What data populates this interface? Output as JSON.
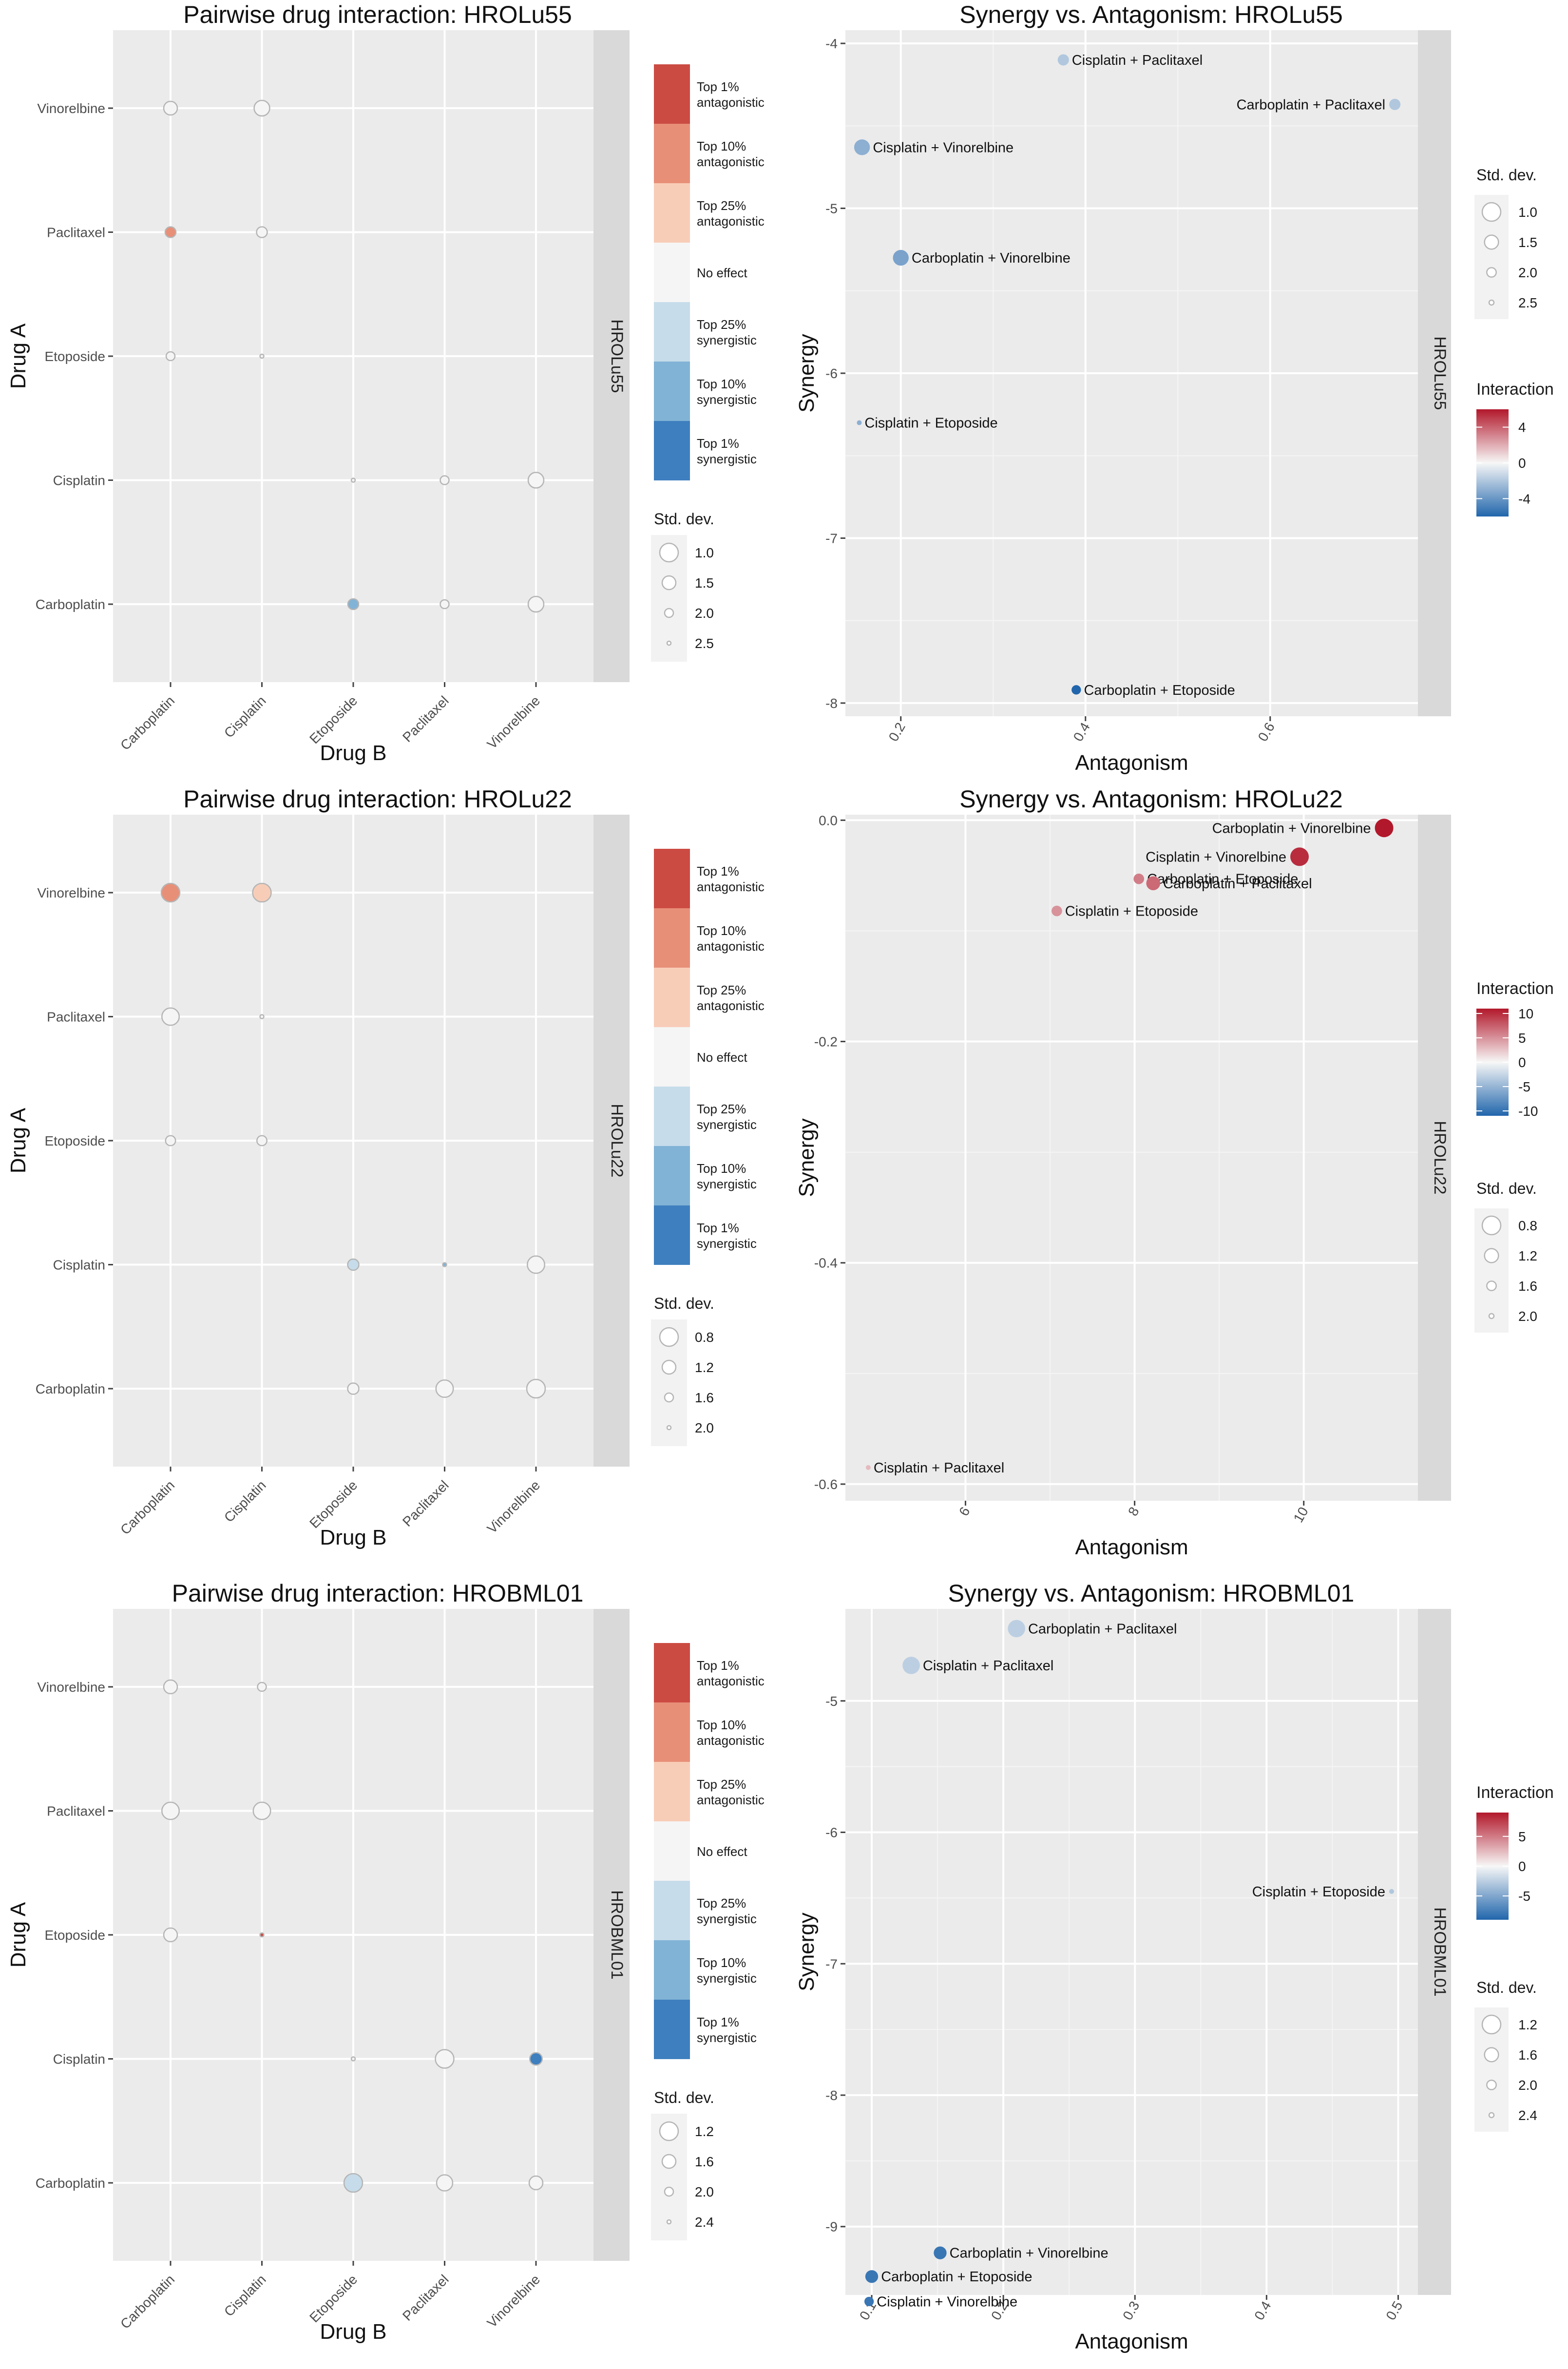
{
  "legend": {
    "interaction_levels": [
      "Top 1%\nantagonistic",
      "Top 10%\nantagonistic",
      "Top 25%\nantagonistic",
      "No effect",
      "Top 25%\nsynergistic",
      "Top 10%\nsynergistic",
      "Top 1%\nsynergistic"
    ],
    "level_colors": [
      "#cb4b43",
      "#e88f78",
      "#f8cdb8",
      "#f5f5f5",
      "#c6dcea",
      "#81b3d6",
      "#3e7fbf"
    ],
    "stddev_title": "Std. dev.",
    "interaction_title": "Interaction"
  },
  "chart_data": [
    {
      "type": "scatter",
      "subtype": "pairwise-matrix",
      "title": "Pairwise drug interaction:  HROLu55",
      "xlabel": "Drug B",
      "ylabel": "Drug A",
      "strip": "HROLu55",
      "x_categories": [
        "Carboplatin",
        "Cisplatin",
        "Etoposide",
        "Paclitaxel",
        "Vinorelbine"
      ],
      "y_categories": [
        "Carboplatin",
        "Cisplatin",
        "Etoposide",
        "Paclitaxel",
        "Vinorelbine"
      ],
      "sd_legend": [
        "1.0",
        "1.5",
        "2.0",
        "2.5"
      ],
      "sd_legend_values": [
        1.0,
        1.5,
        2.0,
        2.5
      ],
      "points": [
        {
          "drug_b": "Carboplatin",
          "drug_a": "Vinorelbine",
          "level": "No effect",
          "sd": 1.5
        },
        {
          "drug_b": "Cisplatin",
          "drug_a": "Vinorelbine",
          "level": "No effect",
          "sd": 1.3
        },
        {
          "drug_b": "Carboplatin",
          "drug_a": "Paclitaxel",
          "level": "Top 10%\nantagonistic",
          "sd": 1.8
        },
        {
          "drug_b": "Cisplatin",
          "drug_a": "Paclitaxel",
          "level": "No effect",
          "sd": 1.8
        },
        {
          "drug_b": "Carboplatin",
          "drug_a": "Etoposide",
          "level": "No effect",
          "sd": 2.0
        },
        {
          "drug_b": "Cisplatin",
          "drug_a": "Etoposide",
          "level": "No effect",
          "sd": 2.5
        },
        {
          "drug_b": "Etoposide",
          "drug_a": "Cisplatin",
          "level": "No effect",
          "sd": 2.5
        },
        {
          "drug_b": "Paclitaxel",
          "drug_a": "Cisplatin",
          "level": "No effect",
          "sd": 2.0
        },
        {
          "drug_b": "Vinorelbine",
          "drug_a": "Cisplatin",
          "level": "No effect",
          "sd": 1.3
        },
        {
          "drug_b": "Etoposide",
          "drug_a": "Carboplatin",
          "level": "Top 10%\nsynergistic",
          "sd": 1.8
        },
        {
          "drug_b": "Paclitaxel",
          "drug_a": "Carboplatin",
          "level": "No effect",
          "sd": 2.0
        },
        {
          "drug_b": "Vinorelbine",
          "drug_a": "Carboplatin",
          "level": "No effect",
          "sd": 1.3
        }
      ]
    },
    {
      "type": "scatter",
      "title": "Synergy vs. Antagonism:  HROLu55",
      "xlabel": "Antagonism",
      "ylabel": "Synergy",
      "strip": "HROLu55",
      "xlim": [
        0.14,
        0.76
      ],
      "ylim": [
        -8.08,
        -3.92
      ],
      "x_ticks": [
        0.2,
        0.4,
        0.6
      ],
      "x_tick_labels": [
        "0.2",
        "0.4",
        "0.6"
      ],
      "y_ticks": [
        -8,
        -7,
        -6,
        -5,
        -4
      ],
      "y_tick_labels": [
        "-8",
        "-7",
        "-6",
        "-5",
        "-4"
      ],
      "sd_legend": [
        "1.0",
        "1.5",
        "2.0",
        "2.5"
      ],
      "sd_legend_values": [
        1.0,
        1.5,
        2.0,
        2.5
      ],
      "colorbar": {
        "min": -6.0,
        "max": 6.0,
        "ticks": [
          4,
          0,
          -4
        ],
        "tick_labels": [
          "4",
          "0",
          "-4"
        ]
      },
      "points": [
        {
          "label": "Cisplatin + Paclitaxel",
          "x": 0.376,
          "y": -4.1,
          "interaction": -2.0,
          "sd": 1.8
        },
        {
          "label": "Carboplatin + Paclitaxel",
          "x": 0.735,
          "y": -4.37,
          "interaction": -2.0,
          "sd": 1.8
        },
        {
          "label": "Cisplatin + Vinorelbine",
          "x": 0.158,
          "y": -4.63,
          "interaction": -3.0,
          "sd": 1.3
        },
        {
          "label": "Carboplatin + Vinorelbine",
          "x": 0.2,
          "y": -5.3,
          "interaction": -3.5,
          "sd": 1.3
        },
        {
          "label": "Cisplatin + Etoposide",
          "x": 0.155,
          "y": -6.3,
          "interaction": -3.0,
          "sd": 2.5
        },
        {
          "label": "Carboplatin + Etoposide",
          "x": 0.39,
          "y": -7.92,
          "interaction": -6.0,
          "sd": 2.0
        }
      ]
    },
    {
      "type": "scatter",
      "subtype": "pairwise-matrix",
      "title": "Pairwise drug interaction:  HROLu22",
      "xlabel": "Drug B",
      "ylabel": "Drug A",
      "strip": "HROLu22",
      "x_categories": [
        "Carboplatin",
        "Cisplatin",
        "Etoposide",
        "Paclitaxel",
        "Vinorelbine"
      ],
      "y_categories": [
        "Carboplatin",
        "Cisplatin",
        "Etoposide",
        "Paclitaxel",
        "Vinorelbine"
      ],
      "sd_legend": [
        "0.8",
        "1.2",
        "1.6",
        "2.0"
      ],
      "sd_legend_values": [
        0.8,
        1.2,
        1.6,
        2.0
      ],
      "points": [
        {
          "drug_b": "Carboplatin",
          "drug_a": "Vinorelbine",
          "level": "Top 10%\nantagonistic",
          "sd": 0.8
        },
        {
          "drug_b": "Cisplatin",
          "drug_a": "Vinorelbine",
          "level": "Top 25%\nantagonistic",
          "sd": 0.8
        },
        {
          "drug_b": "Carboplatin",
          "drug_a": "Paclitaxel",
          "level": "No effect",
          "sd": 0.9
        },
        {
          "drug_b": "Cisplatin",
          "drug_a": "Paclitaxel",
          "level": "No effect",
          "sd": 2.0
        },
        {
          "drug_b": "Carboplatin",
          "drug_a": "Etoposide",
          "level": "No effect",
          "sd": 1.5
        },
        {
          "drug_b": "Cisplatin",
          "drug_a": "Etoposide",
          "level": "No effect",
          "sd": 1.5
        },
        {
          "drug_b": "Etoposide",
          "drug_a": "Cisplatin",
          "level": "Top 25%\nsynergistic",
          "sd": 1.4
        },
        {
          "drug_b": "Paclitaxel",
          "drug_a": "Cisplatin",
          "level": "Top 10%\nsynergistic",
          "sd": 2.0
        },
        {
          "drug_b": "Vinorelbine",
          "drug_a": "Cisplatin",
          "level": "No effect",
          "sd": 0.9
        },
        {
          "drug_b": "Etoposide",
          "drug_a": "Carboplatin",
          "level": "No effect",
          "sd": 1.4
        },
        {
          "drug_b": "Paclitaxel",
          "drug_a": "Carboplatin",
          "level": "No effect",
          "sd": 0.9
        },
        {
          "drug_b": "Vinorelbine",
          "drug_a": "Carboplatin",
          "level": "No effect",
          "sd": 0.8
        }
      ]
    },
    {
      "type": "scatter",
      "title": "Synergy vs. Antagonism:  HROLu22",
      "xlabel": "Antagonism",
      "ylabel": "Synergy",
      "strip": "HROLu22",
      "xlim": [
        4.58,
        11.35
      ],
      "ylim": [
        -0.615,
        0.005
      ],
      "x_ticks": [
        6,
        8,
        10
      ],
      "x_tick_labels": [
        "6",
        "8",
        "10"
      ],
      "y_ticks": [
        -0.6,
        -0.4,
        -0.2,
        0.0
      ],
      "y_tick_labels": [
        "-0.6",
        "-0.4",
        "-0.2",
        "0.0"
      ],
      "sd_legend": [
        "0.8",
        "1.2",
        "1.6",
        "2.0"
      ],
      "sd_legend_values": [
        0.8,
        1.2,
        1.6,
        2.0
      ],
      "colorbar": {
        "min": -11.0,
        "max": 11.0,
        "ticks": [
          10,
          5,
          0,
          -5,
          -10
        ],
        "tick_labels": [
          "10",
          "5",
          "0",
          "-5",
          "-10"
        ]
      },
      "points": [
        {
          "label": "Carboplatin + Vinorelbine",
          "x": 10.95,
          "y": -0.007,
          "interaction": 11.0,
          "sd": 0.8
        },
        {
          "label": "Cisplatin + Vinorelbine",
          "x": 9.95,
          "y": -0.033,
          "interaction": 10.0,
          "sd": 0.8
        },
        {
          "label": "Carboplatin + Etoposide",
          "x": 8.05,
          "y": -0.053,
          "interaction": 6.0,
          "sd": 1.5
        },
        {
          "label": "Carboplatin + Paclitaxel",
          "x": 8.22,
          "y": -0.057,
          "interaction": 7.0,
          "sd": 1.2
        },
        {
          "label": "Cisplatin + Etoposide",
          "x": 7.08,
          "y": -0.082,
          "interaction": 5.0,
          "sd": 1.5
        },
        {
          "label": "Cisplatin + Paclitaxel",
          "x": 4.85,
          "y": -0.585,
          "interaction": 3.0,
          "sd": 2.0
        }
      ]
    },
    {
      "type": "scatter",
      "subtype": "pairwise-matrix",
      "title": "Pairwise drug interaction:  HROBML01",
      "xlabel": "Drug B",
      "ylabel": "Drug A",
      "strip": "HROBML01",
      "x_categories": [
        "Carboplatin",
        "Cisplatin",
        "Etoposide",
        "Paclitaxel",
        "Vinorelbine"
      ],
      "y_categories": [
        "Carboplatin",
        "Cisplatin",
        "Etoposide",
        "Paclitaxel",
        "Vinorelbine"
      ],
      "sd_legend": [
        "1.2",
        "1.6",
        "2.0",
        "2.4"
      ],
      "sd_legend_values": [
        1.2,
        1.6,
        2.0,
        2.4
      ],
      "points": [
        {
          "drug_b": "Carboplatin",
          "drug_a": "Vinorelbine",
          "level": "No effect",
          "sd": 1.6
        },
        {
          "drug_b": "Cisplatin",
          "drug_a": "Vinorelbine",
          "level": "No effect",
          "sd": 2.0
        },
        {
          "drug_b": "Carboplatin",
          "drug_a": "Paclitaxel",
          "level": "No effect",
          "sd": 1.3
        },
        {
          "drug_b": "Cisplatin",
          "drug_a": "Paclitaxel",
          "level": "No effect",
          "sd": 1.3
        },
        {
          "drug_b": "Carboplatin",
          "drug_a": "Etoposide",
          "level": "No effect",
          "sd": 1.6
        },
        {
          "drug_b": "Cisplatin",
          "drug_a": "Etoposide",
          "level": "Top 1%\nantagonistic",
          "sd": 2.4
        },
        {
          "drug_b": "Etoposide",
          "drug_a": "Cisplatin",
          "level": "No effect",
          "sd": 2.4
        },
        {
          "drug_b": "Paclitaxel",
          "drug_a": "Cisplatin",
          "level": "No effect",
          "sd": 1.2
        },
        {
          "drug_b": "Vinorelbine",
          "drug_a": "Cisplatin",
          "level": "Top 1%\nsynergistic",
          "sd": 1.7
        },
        {
          "drug_b": "Etoposide",
          "drug_a": "Carboplatin",
          "level": "Top 25%\nsynergistic",
          "sd": 1.2
        },
        {
          "drug_b": "Paclitaxel",
          "drug_a": "Carboplatin",
          "level": "No effect",
          "sd": 1.4
        },
        {
          "drug_b": "Vinorelbine",
          "drug_a": "Carboplatin",
          "level": "No effect",
          "sd": 1.6
        }
      ]
    },
    {
      "type": "scatter",
      "title": "Synergy vs. Antagonism:  HROBML01",
      "xlabel": "Antagonism",
      "ylabel": "Synergy",
      "strip": "HROBML01",
      "xlim": [
        0.08,
        0.515
      ],
      "ylim": [
        -9.52,
        -4.3
      ],
      "x_ticks": [
        0.1,
        0.2,
        0.3,
        0.4,
        0.5
      ],
      "x_tick_labels": [
        "0.1",
        "0.2",
        "0.3",
        "0.4",
        "0.5"
      ],
      "y_ticks": [
        -9,
        -8,
        -7,
        -6,
        -5
      ],
      "y_tick_labels": [
        "-9",
        "-8",
        "-7",
        "-6",
        "-5"
      ],
      "sd_legend": [
        "1.2",
        "1.6",
        "2.0",
        "2.4"
      ],
      "sd_legend_values": [
        1.2,
        1.6,
        2.0,
        2.4
      ],
      "colorbar": {
        "min": -9.0,
        "max": 9.0,
        "ticks": [
          5,
          0,
          -5
        ],
        "tick_labels": [
          "5",
          "0",
          "-5"
        ]
      },
      "points": [
        {
          "label": "Carboplatin + Paclitaxel",
          "x": 0.21,
          "y": -4.45,
          "interaction": -2.5,
          "sd": 1.3
        },
        {
          "label": "Cisplatin + Paclitaxel",
          "x": 0.13,
          "y": -4.73,
          "interaction": -2.5,
          "sd": 1.3
        },
        {
          "label": "Cisplatin + Etoposide",
          "x": 0.495,
          "y": -6.45,
          "interaction": -3.0,
          "sd": 2.4
        },
        {
          "label": "Carboplatin + Vinorelbine",
          "x": 0.152,
          "y": -9.2,
          "interaction": -8.0,
          "sd": 1.7
        },
        {
          "label": "Carboplatin + Etoposide",
          "x": 0.1,
          "y": -9.38,
          "interaction": -8.0,
          "sd": 1.7
        },
        {
          "label": "Cisplatin + Vinorelbine",
          "x": 0.098,
          "y": -9.57,
          "interaction": -8.0,
          "sd": 2.0
        }
      ]
    }
  ]
}
